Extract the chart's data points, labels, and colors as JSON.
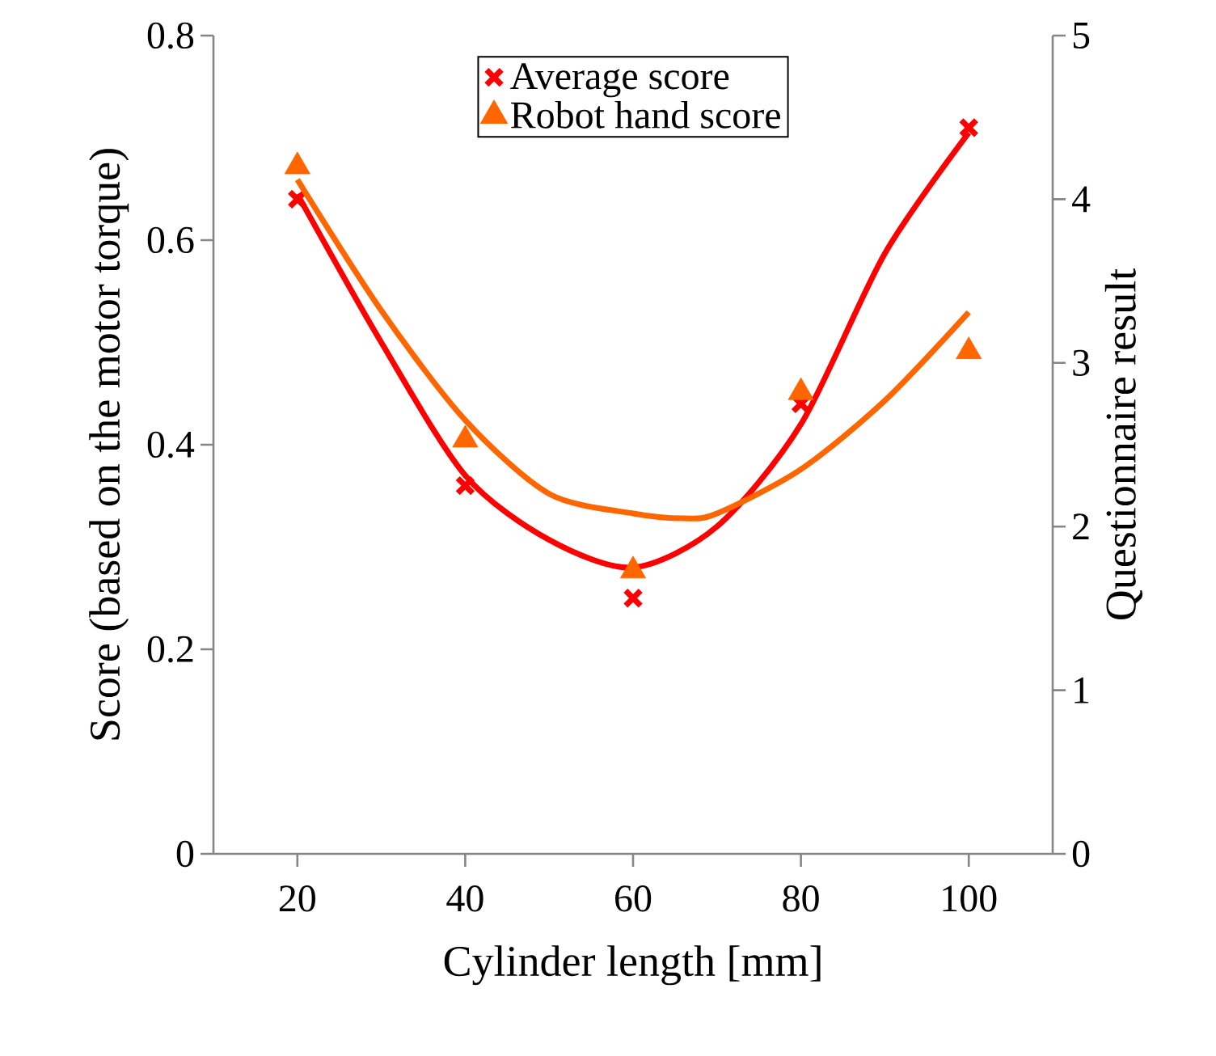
{
  "chart_data": {
    "type": "scatter",
    "xlabel": "Cylinder length [mm]",
    "ylabel": "Score (based on the motor torque)",
    "y2label": "Questionnaire result",
    "xlim": [
      10,
      110
    ],
    "xticks": [
      20,
      40,
      60,
      80,
      100
    ],
    "ylim": [
      0,
      0.8
    ],
    "yticks": [
      0,
      0.2,
      0.4,
      0.6,
      0.8
    ],
    "y2lim": [
      0,
      5
    ],
    "y2ticks": [
      0,
      1,
      2,
      3,
      4,
      5
    ],
    "legend": "top",
    "x": [
      20,
      40,
      60,
      80,
      100
    ],
    "series": [
      {
        "name": "Average score",
        "color": "#ff0000",
        "marker": "cross",
        "values": [
          0.64,
          0.36,
          0.25,
          0.44,
          0.71
        ]
      },
      {
        "name": "Robot hand score",
        "color": "#ff6600",
        "marker": "triangle",
        "axis": "y2",
        "values": [
          4.2,
          2.53,
          1.73,
          2.82,
          3.07
        ]
      },
      {
        "type": "line",
        "color": "#ff0000",
        "marker": "none",
        "x": [
          20,
          30,
          40,
          50,
          60,
          70,
          80,
          90,
          100
        ],
        "values": [
          0.645,
          0.5,
          0.37,
          0.307,
          0.28,
          0.32,
          0.42,
          0.587,
          0.705
        ]
      },
      {
        "type": "line",
        "color": "#ff6600",
        "marker": "none",
        "axis": "y2",
        "x": [
          20,
          30,
          40,
          50,
          60,
          66,
          70,
          80,
          90,
          100
        ],
        "values": [
          4.12,
          3.32,
          2.65,
          2.2,
          2.08,
          2.05,
          2.08,
          2.35,
          2.77,
          3.31
        ]
      }
    ]
  }
}
